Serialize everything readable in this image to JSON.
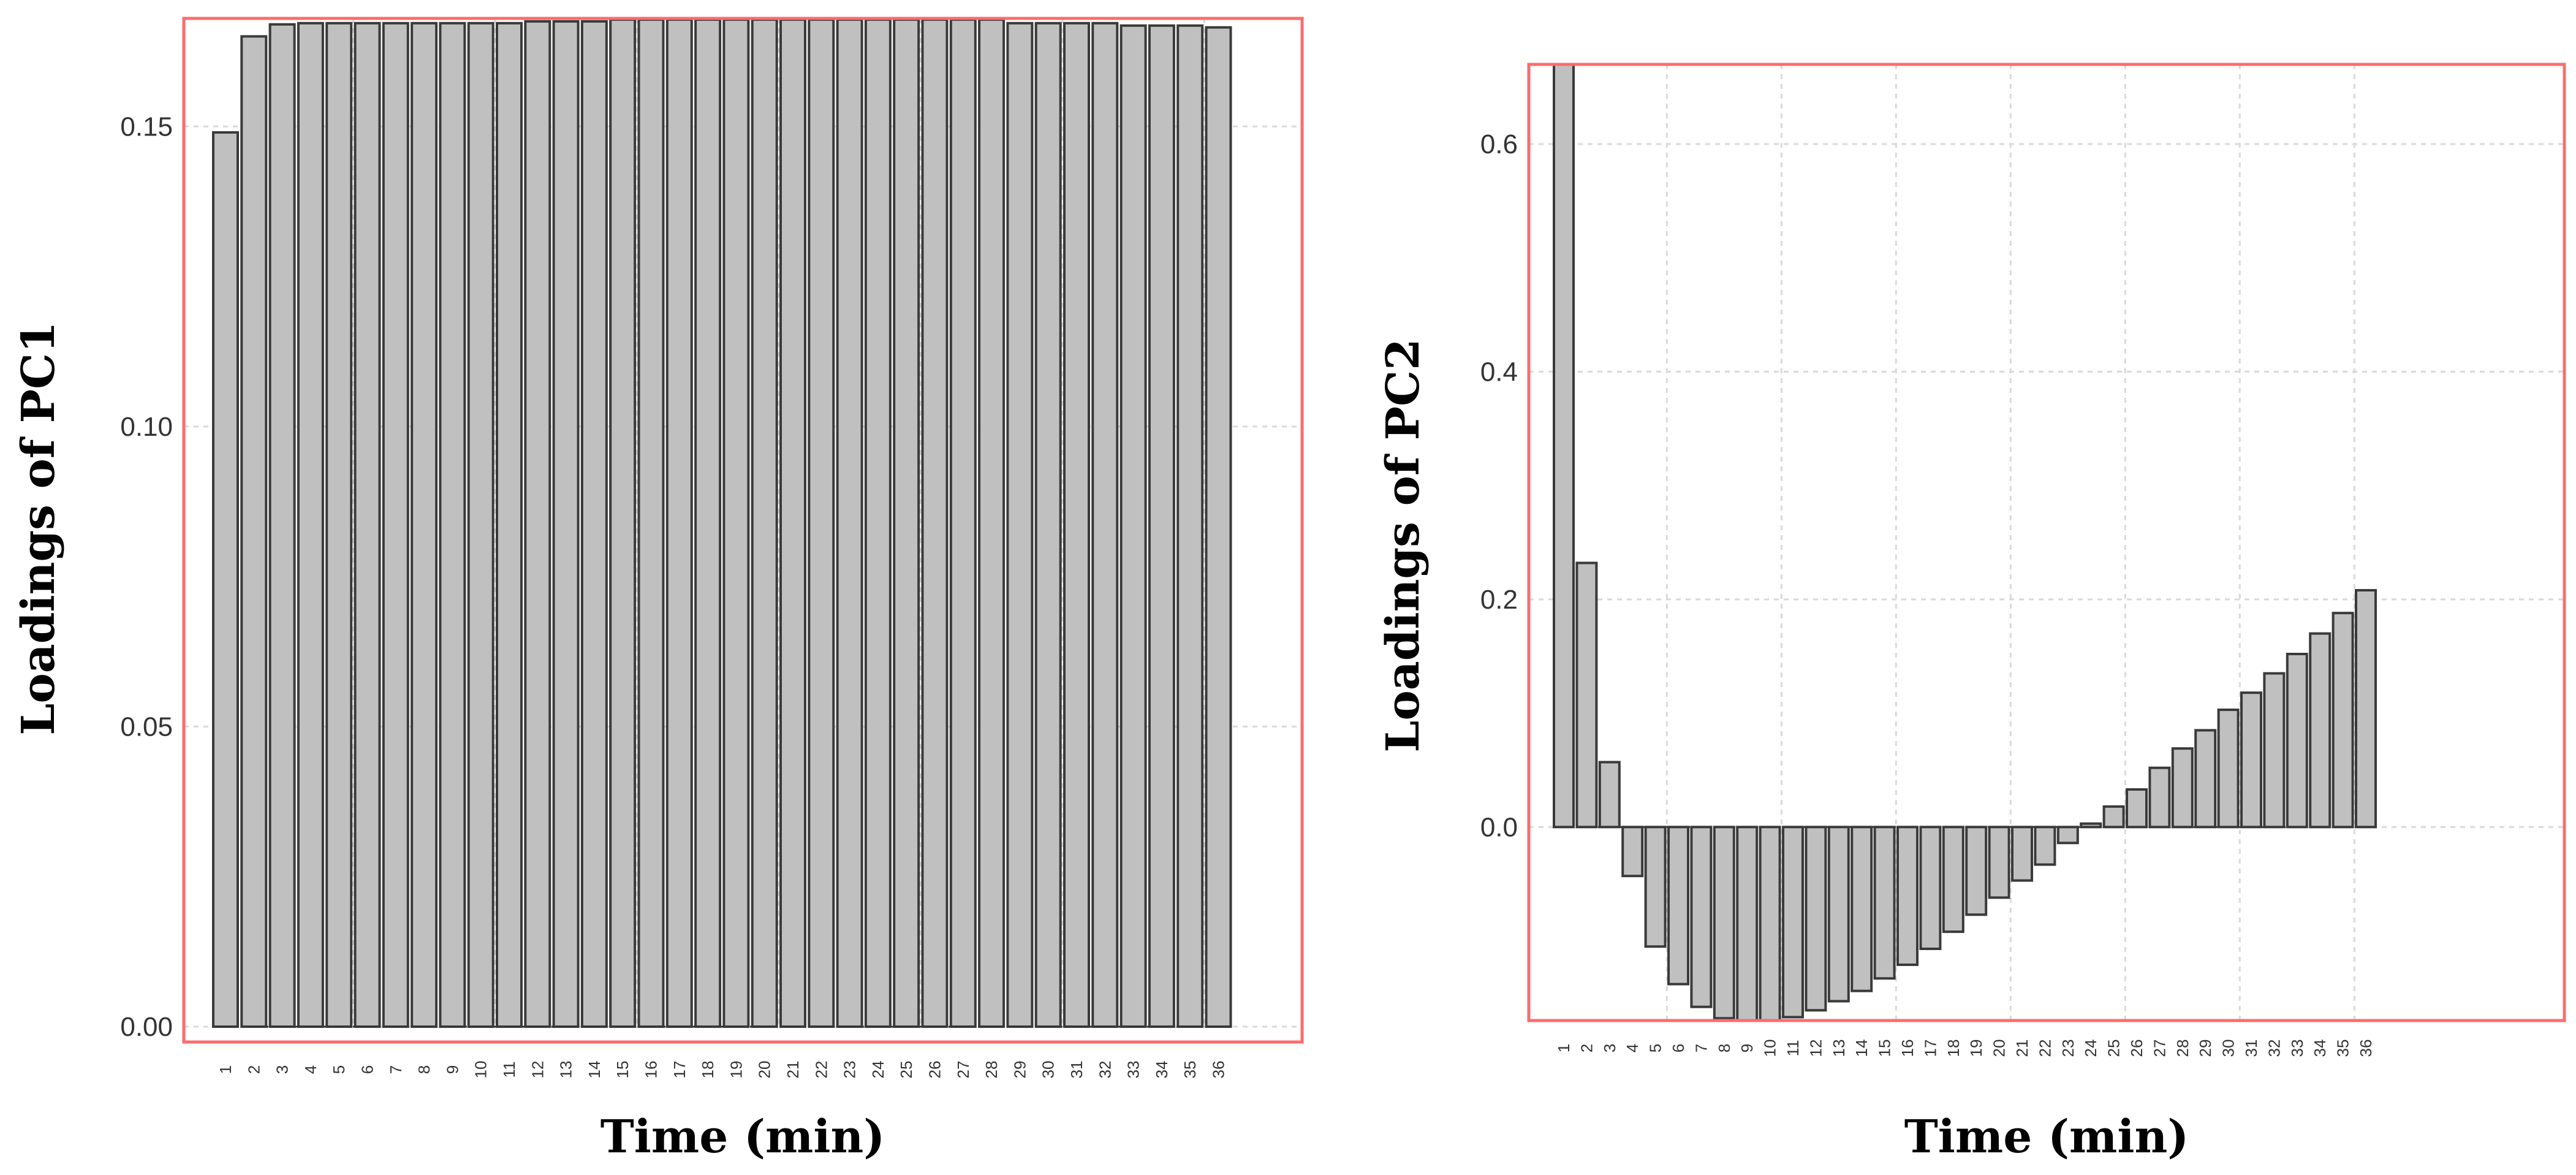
{
  "chart_data": [
    {
      "type": "bar",
      "ylabel": "Loadings of PC1",
      "xlabel": "Time (min)",
      "categories": [
        "1",
        "2",
        "3",
        "4",
        "5",
        "6",
        "7",
        "8",
        "9",
        "10",
        "11",
        "12",
        "13",
        "14",
        "15",
        "16",
        "17",
        "18",
        "19",
        "20",
        "21",
        "22",
        "23",
        "24",
        "25",
        "26",
        "27",
        "28",
        "29",
        "30",
        "31",
        "32",
        "33",
        "34",
        "35",
        "36"
      ],
      "values": [
        0.149,
        0.165,
        0.167,
        0.1672,
        0.1672,
        0.1672,
        0.1672,
        0.1672,
        0.1672,
        0.1672,
        0.1672,
        0.1675,
        0.1675,
        0.1675,
        0.1678,
        0.1678,
        0.1678,
        0.1678,
        0.1678,
        0.1678,
        0.1678,
        0.1678,
        0.1678,
        0.1678,
        0.1678,
        0.1678,
        0.1678,
        0.1678,
        0.1672,
        0.1672,
        0.1672,
        0.1672,
        0.1668,
        0.1668,
        0.1668,
        0.1665
      ],
      "ylim": [
        0,
        0.168
      ],
      "yticks": [
        0.0,
        0.05,
        0.1,
        0.15
      ],
      "ytick_labels": [
        "0.00",
        "0.05",
        "0.10",
        "0.15"
      ],
      "grid": true
    },
    {
      "type": "bar",
      "ylabel": "Loadings of PC2",
      "xlabel": "Time (min)",
      "categories": [
        "1",
        "2",
        "3",
        "4",
        "5",
        "6",
        "7",
        "8",
        "9",
        "10",
        "11",
        "12",
        "13",
        "14",
        "15",
        "16",
        "17",
        "18",
        "19",
        "20",
        "21",
        "22",
        "23",
        "24",
        "25",
        "26",
        "27",
        "28",
        "29",
        "30",
        "31",
        "32",
        "33",
        "34",
        "35",
        "36"
      ],
      "values": [
        0.67,
        0.232,
        0.057,
        -0.043,
        -0.105,
        -0.138,
        -0.158,
        -0.168,
        -0.17,
        -0.17,
        -0.167,
        -0.161,
        -0.153,
        -0.144,
        -0.133,
        -0.121,
        -0.107,
        -0.092,
        -0.077,
        -0.062,
        -0.047,
        -0.033,
        -0.014,
        0.003,
        0.018,
        0.033,
        0.052,
        0.069,
        0.085,
        0.103,
        0.118,
        0.135,
        0.152,
        0.17,
        0.188,
        0.208
      ],
      "ylim": [
        -0.17,
        0.67
      ],
      "yticks": [
        0.0,
        0.2,
        0.4,
        0.6
      ],
      "ytick_labels": [
        "0.0",
        "0.2",
        "0.4",
        "0.6"
      ],
      "grid": true
    }
  ]
}
